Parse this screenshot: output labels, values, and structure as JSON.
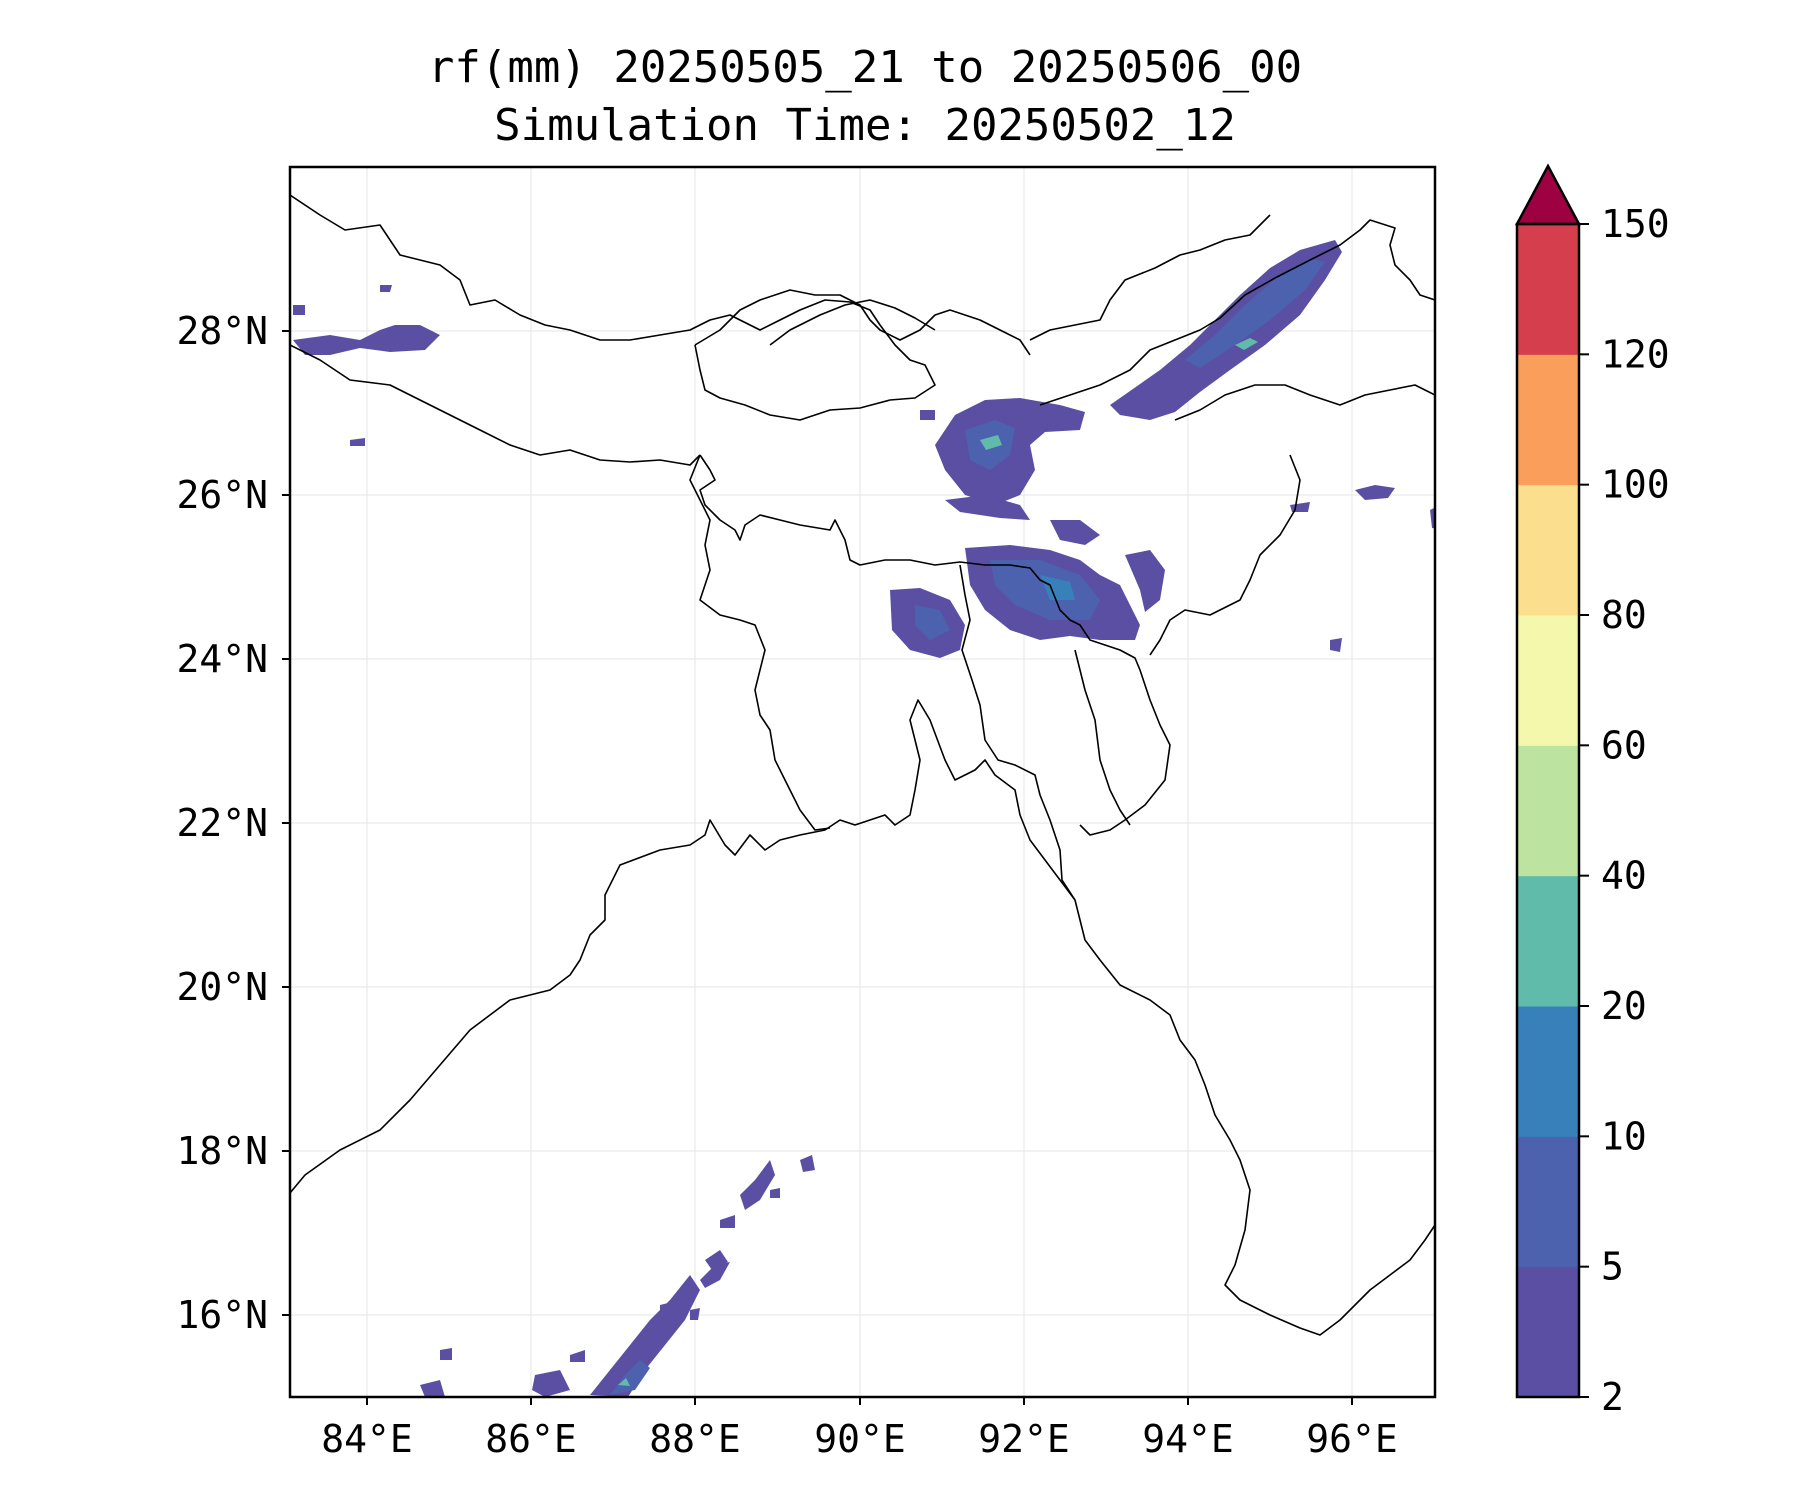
{
  "title": {
    "line1": "rf(mm) 20250505_21 to 20250506_00",
    "line2": "Simulation Time: 20250502_12"
  },
  "map": {
    "lon_range": [
      83,
      97
    ],
    "lat_range": [
      15,
      30
    ],
    "lon_ticks": [
      "84°E",
      "86°E",
      "88°E",
      "90°E",
      "92°E",
      "94°E",
      "96°E"
    ],
    "lat_ticks": [
      "16°N",
      "18°N",
      "20°N",
      "22°N",
      "24°N",
      "26°N",
      "28°N"
    ],
    "gridlines": true
  },
  "colorbar": {
    "levels": [
      "2",
      "5",
      "10",
      "20",
      "40",
      "60",
      "80",
      "100",
      "120",
      "150"
    ],
    "colors": [
      "#5a4fa3",
      "#4d62ae",
      "#3880b9",
      "#60bbaa",
      "#bde3a1",
      "#f4f8ad",
      "#fbdf8f",
      "#f99e5b",
      "#d53f4d"
    ],
    "extend_color": "#9e0142",
    "extend": "max"
  }
}
